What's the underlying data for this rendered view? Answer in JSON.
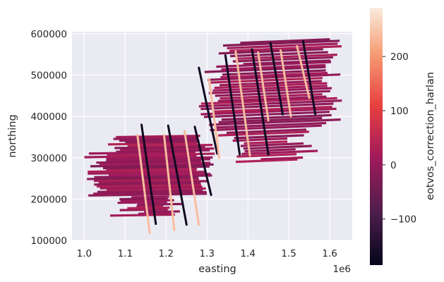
{
  "chart_data": {
    "type": "scatter",
    "xlabel": "easting",
    "ylabel": "northing",
    "x_offset_label": "1e6",
    "xlim": [
      0.97,
      1.655
    ],
    "ylim": [
      100000,
      605000
    ],
    "x_ticks": [
      1.0,
      1.1,
      1.2,
      1.3,
      1.4,
      1.5,
      1.6
    ],
    "x_tick_labels": [
      "1.0",
      "1.1",
      "1.2",
      "1.3",
      "1.4",
      "1.5",
      "1.6"
    ],
    "y_ticks": [
      100000,
      200000,
      300000,
      400000,
      500000,
      600000
    ],
    "y_tick_labels": [
      "100000",
      "200000",
      "300000",
      "400000",
      "500000",
      "600000"
    ],
    "grid": true,
    "colorbar": {
      "label": "eotvos_correction_harlan",
      "range": [
        -185,
        290
      ],
      "ticks": [
        -100,
        0,
        100,
        200
      ],
      "tick_labels": [
        "−100",
        "0",
        "100",
        "200"
      ],
      "colormap": "rocket",
      "colors": [
        "#03051a",
        "#4c1d4b",
        "#a11a5b",
        "#e83f3f",
        "#f69c73",
        "#faebdd"
      ]
    },
    "default_value": 10,
    "east_west_lines": {
      "block1": {
        "x_start": 1.0,
        "x_end": 1.32,
        "y_start": 160000,
        "y_end": 350000,
        "count": 44
      },
      "block2": {
        "x_start": 1.28,
        "x_end": 1.63,
        "y_start": 290000,
        "y_end": 578000,
        "count": 46
      }
    },
    "tie_lines": [
      {
        "x": [
          1.14,
          1.175
        ],
        "y": [
          380000,
          140000
        ],
        "value": -170
      },
      {
        "x": [
          1.205,
          1.25
        ],
        "y": [
          378000,
          138000
        ],
        "value": -170
      },
      {
        "x": [
          1.27,
          1.31
        ],
        "y": [
          375000,
          210000
        ],
        "value": -170
      },
      {
        "x": [
          1.28,
          1.325
        ],
        "y": [
          518000,
          310000
        ],
        "value": -170
      },
      {
        "x": [
          1.345,
          1.38
        ],
        "y": [
          548000,
          308000
        ],
        "value": -170
      },
      {
        "x": [
          1.41,
          1.45
        ],
        "y": [
          562000,
          308000
        ],
        "value": -170
      },
      {
        "x": [
          1.455,
          1.485
        ],
        "y": [
          578000,
          405000
        ],
        "value": -170
      },
      {
        "x": [
          1.535,
          1.565
        ],
        "y": [
          582000,
          405000
        ],
        "value": -170
      },
      {
        "x": [
          1.13,
          1.16
        ],
        "y": [
          355000,
          118000
        ],
        "value": 240
      },
      {
        "x": [
          1.195,
          1.22
        ],
        "y": [
          355000,
          125000
        ],
        "value": 240
      },
      {
        "x": [
          1.245,
          1.28
        ],
        "y": [
          365000,
          138000
        ],
        "value": 240
      },
      {
        "x": [
          1.305,
          1.33
        ],
        "y": [
          490000,
          300000
        ],
        "value": 240
      },
      {
        "x": [
          1.37,
          1.405
        ],
        "y": [
          558000,
          305000
        ],
        "value": 240
      },
      {
        "x": [
          1.425,
          1.45
        ],
        "y": [
          555000,
          390000
        ],
        "value": 240
      },
      {
        "x": [
          1.48,
          1.505
        ],
        "y": [
          560000,
          400000
        ],
        "value": 240
      },
      {
        "x": [
          1.52,
          1.55
        ],
        "y": [
          570000,
          445000
        ],
        "value": 240
      }
    ]
  }
}
